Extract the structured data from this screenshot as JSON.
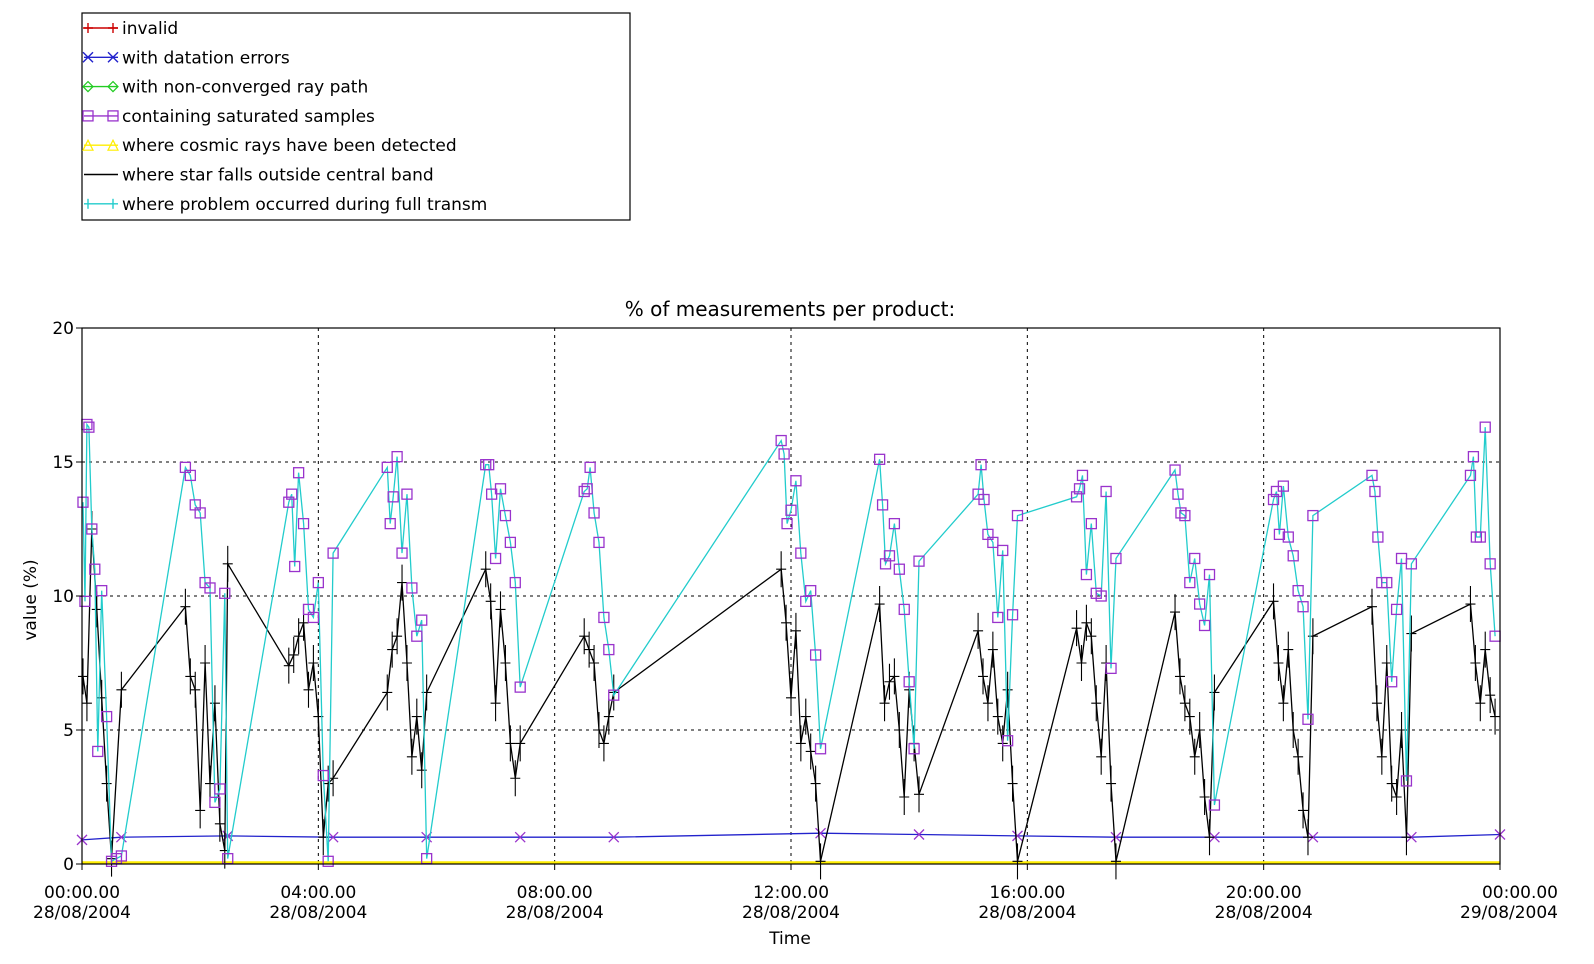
{
  "chart_data": {
    "type": "line",
    "title": "% of measurements per product:",
    "xlabel": "Time",
    "ylabel": "value (%)",
    "ylim": [
      0,
      20
    ],
    "xlim": [
      "2004-08-28 00:00",
      "2004-08-29 00:00"
    ],
    "grid": true,
    "legend_position": "top-left",
    "y_ticks": [
      "0",
      "5",
      "10",
      "15",
      "20"
    ],
    "x_ticks": [
      {
        "time": "2004-08-28 00:00",
        "label1": "00:00.00",
        "label2": "28/08/2004"
      },
      {
        "time": "2004-08-28 04:00",
        "label1": "04:00.00",
        "label2": "28/08/2004"
      },
      {
        "time": "2004-08-28 08:00",
        "label1": "08:00.00",
        "label2": "28/08/2004"
      },
      {
        "time": "2004-08-28 12:00",
        "label1": "12:00.00",
        "label2": "28/08/2004"
      },
      {
        "time": "2004-08-28 16:00",
        "label1": "16:00.00",
        "label2": "28/08/2004"
      },
      {
        "time": "2004-08-28 20:00",
        "label1": "20:00.00",
        "label2": "28/08/2004"
      },
      {
        "time": "2004-08-29 00:00",
        "label1": "00:00.00",
        "label2": "29/08/2004"
      }
    ],
    "legend": [
      {
        "name": "invalid",
        "color": "#cc0000",
        "marker": "plus"
      },
      {
        "name": "with datation errors",
        "color": "#2222cc",
        "marker": "x"
      },
      {
        "name": "with non-converged ray path",
        "color": "#22cc22",
        "marker": "diamond"
      },
      {
        "name": "containing saturated samples",
        "color": "#9933cc",
        "marker": "square"
      },
      {
        "name": "where cosmic rays have been detected",
        "color": "#ffee00",
        "marker": "triangle"
      },
      {
        "name": "where star falls outside central band",
        "color": "#000000",
        "marker": "none"
      },
      {
        "name": "where problem occurred during full transm",
        "color": "#22cccc",
        "marker": "bar"
      }
    ],
    "series": [
      {
        "name": "where problem occurred during full transm",
        "color": "#22cccc",
        "marker_color": "#9933cc",
        "x": [
          "2004-08-28 00:01",
          "2004-08-28 00:03",
          "2004-08-28 00:05",
          "2004-08-28 00:07",
          "2004-08-28 00:10",
          "2004-08-28 00:13",
          "2004-08-28 00:16",
          "2004-08-28 00:20",
          "2004-08-28 00:25",
          "2004-08-28 00:30",
          "2004-08-28 00:35",
          "2004-08-28 00:40",
          "2004-08-28 01:45",
          "2004-08-28 01:50",
          "2004-08-28 01:55",
          "2004-08-28 02:00",
          "2004-08-28 02:05",
          "2004-08-28 02:10",
          "2004-08-28 02:15",
          "2004-08-28 02:20",
          "2004-08-28 02:25",
          "2004-08-28 02:28",
          "2004-08-28 03:30",
          "2004-08-28 03:33",
          "2004-08-28 03:36",
          "2004-08-28 03:40",
          "2004-08-28 03:45",
          "2004-08-28 03:50",
          "2004-08-28 03:55",
          "2004-08-28 04:00",
          "2004-08-28 04:05",
          "2004-08-28 04:10",
          "2004-08-28 04:15",
          "2004-08-28 05:10",
          "2004-08-28 05:13",
          "2004-08-28 05:16",
          "2004-08-28 05:20",
          "2004-08-28 05:25",
          "2004-08-28 05:30",
          "2004-08-28 05:35",
          "2004-08-28 05:40",
          "2004-08-28 05:45",
          "2004-08-28 05:50",
          "2004-08-28 06:50",
          "2004-08-28 06:53",
          "2004-08-28 06:56",
          "2004-08-28 07:00",
          "2004-08-28 07:05",
          "2004-08-28 07:10",
          "2004-08-28 07:15",
          "2004-08-28 07:20",
          "2004-08-28 07:25",
          "2004-08-28 08:30",
          "2004-08-28 08:33",
          "2004-08-28 08:36",
          "2004-08-28 08:40",
          "2004-08-28 08:45",
          "2004-08-28 08:50",
          "2004-08-28 08:55",
          "2004-08-28 09:00",
          "2004-08-28 11:50",
          "2004-08-28 11:53",
          "2004-08-28 11:56",
          "2004-08-28 12:00",
          "2004-08-28 12:05",
          "2004-08-28 12:10",
          "2004-08-28 12:15",
          "2004-08-28 12:20",
          "2004-08-28 12:25",
          "2004-08-28 12:30",
          "2004-08-28 13:30",
          "2004-08-28 13:33",
          "2004-08-28 13:36",
          "2004-08-28 13:40",
          "2004-08-28 13:45",
          "2004-08-28 13:50",
          "2004-08-28 13:55",
          "2004-08-28 14:00",
          "2004-08-28 14:05",
          "2004-08-28 14:10",
          "2004-08-28 15:10",
          "2004-08-28 15:13",
          "2004-08-28 15:16",
          "2004-08-28 15:20",
          "2004-08-28 15:25",
          "2004-08-28 15:30",
          "2004-08-28 15:35",
          "2004-08-28 15:40",
          "2004-08-28 15:45",
          "2004-08-28 15:50",
          "2004-08-28 16:50",
          "2004-08-28 16:53",
          "2004-08-28 16:56",
          "2004-08-28 17:00",
          "2004-08-28 17:05",
          "2004-08-28 17:10",
          "2004-08-28 17:15",
          "2004-08-28 17:20",
          "2004-08-28 17:25",
          "2004-08-28 17:30",
          "2004-08-28 18:30",
          "2004-08-28 18:33",
          "2004-08-28 18:36",
          "2004-08-28 18:40",
          "2004-08-28 18:45",
          "2004-08-28 18:50",
          "2004-08-28 18:55",
          "2004-08-28 19:00",
          "2004-08-28 19:05",
          "2004-08-28 19:10",
          "2004-08-28 20:10",
          "2004-08-28 20:13",
          "2004-08-28 20:16",
          "2004-08-28 20:20",
          "2004-08-28 20:25",
          "2004-08-28 20:30",
          "2004-08-28 20:35",
          "2004-08-28 20:40",
          "2004-08-28 20:45",
          "2004-08-28 20:50",
          "2004-08-28 21:50",
          "2004-08-28 21:53",
          "2004-08-28 21:56",
          "2004-08-28 22:00",
          "2004-08-28 22:05",
          "2004-08-28 22:10",
          "2004-08-28 22:15",
          "2004-08-28 22:20",
          "2004-08-28 22:25",
          "2004-08-28 22:30",
          "2004-08-28 23:30",
          "2004-08-28 23:33",
          "2004-08-28 23:36",
          "2004-08-28 23:40",
          "2004-08-28 23:45",
          "2004-08-28 23:50",
          "2004-08-28 23:55"
        ],
        "values": [
          13.5,
          9.8,
          16.4,
          16.3,
          12.5,
          11.0,
          4.2,
          10.2,
          5.5,
          0.1,
          0.2,
          0.3,
          14.8,
          14.5,
          13.4,
          13.1,
          10.5,
          10.3,
          2.3,
          2.8,
          10.1,
          0.2,
          13.5,
          13.8,
          11.1,
          14.6,
          12.7,
          9.5,
          9.2,
          10.5,
          3.3,
          0.1,
          11.6,
          14.8,
          12.7,
          13.7,
          15.2,
          11.6,
          13.8,
          10.3,
          8.5,
          9.1,
          0.2,
          14.9,
          14.9,
          13.8,
          11.4,
          14.0,
          13.0,
          12.0,
          10.5,
          6.6,
          13.9,
          14.0,
          14.8,
          13.1,
          12.0,
          9.2,
          8.0,
          6.3,
          15.8,
          15.3,
          12.7,
          13.2,
          14.3,
          11.6,
          9.8,
          10.2,
          7.8,
          4.3,
          15.1,
          13.4,
          11.2,
          11.5,
          12.7,
          11.0,
          9.5,
          6.8,
          4.3,
          11.3,
          13.8,
          14.9,
          13.6,
          12.3,
          12.0,
          9.2,
          11.7,
          4.6,
          9.3,
          13.0,
          13.7,
          14.0,
          14.5,
          10.8,
          12.7,
          10.1,
          10.0,
          13.9,
          7.3,
          11.4,
          14.7,
          13.8,
          13.1,
          13.0,
          10.5,
          11.4,
          9.7,
          8.9,
          10.8,
          2.2,
          13.6,
          13.9,
          12.3,
          14.1,
          12.2,
          11.5,
          10.2,
          9.6,
          5.4,
          13.0,
          14.5,
          13.9,
          12.2,
          10.5,
          10.5,
          6.8,
          9.5,
          11.4,
          3.1,
          11.2,
          14.5,
          15.2,
          12.2,
          12.2,
          16.3,
          11.2,
          8.5
        ]
      },
      {
        "name": "where star falls outside central band",
        "color": "#000000",
        "x": [
          "2004-08-28 00:01",
          "2004-08-28 00:05",
          "2004-08-28 00:10",
          "2004-08-28 00:15",
          "2004-08-28 00:20",
          "2004-08-28 00:25",
          "2004-08-28 00:30",
          "2004-08-28 00:40",
          "2004-08-28 01:45",
          "2004-08-28 01:50",
          "2004-08-28 01:55",
          "2004-08-28 02:00",
          "2004-08-28 02:05",
          "2004-08-28 02:10",
          "2004-08-28 02:15",
          "2004-08-28 02:20",
          "2004-08-28 02:25",
          "2004-08-28 02:28",
          "2004-08-28 03:30",
          "2004-08-28 03:35",
          "2004-08-28 03:40",
          "2004-08-28 03:45",
          "2004-08-28 03:50",
          "2004-08-28 03:55",
          "2004-08-28 04:00",
          "2004-08-28 04:05",
          "2004-08-28 04:10",
          "2004-08-28 04:15",
          "2004-08-28 05:10",
          "2004-08-28 05:15",
          "2004-08-28 05:20",
          "2004-08-28 05:25",
          "2004-08-28 05:30",
          "2004-08-28 05:35",
          "2004-08-28 05:40",
          "2004-08-28 05:45",
          "2004-08-28 05:50",
          "2004-08-28 06:50",
          "2004-08-28 06:55",
          "2004-08-28 07:00",
          "2004-08-28 07:05",
          "2004-08-28 07:10",
          "2004-08-28 07:15",
          "2004-08-28 07:20",
          "2004-08-28 07:25",
          "2004-08-28 08:30",
          "2004-08-28 08:35",
          "2004-08-28 08:40",
          "2004-08-28 08:45",
          "2004-08-28 08:50",
          "2004-08-28 08:55",
          "2004-08-28 09:00",
          "2004-08-28 11:50",
          "2004-08-28 11:55",
          "2004-08-28 12:00",
          "2004-08-28 12:05",
          "2004-08-28 12:10",
          "2004-08-28 12:15",
          "2004-08-28 12:20",
          "2004-08-28 12:25",
          "2004-08-28 12:30",
          "2004-08-28 13:30",
          "2004-08-28 13:35",
          "2004-08-28 13:40",
          "2004-08-28 13:45",
          "2004-08-28 13:50",
          "2004-08-28 13:55",
          "2004-08-28 14:00",
          "2004-08-28 14:05",
          "2004-08-28 14:10",
          "2004-08-28 15:10",
          "2004-08-28 15:15",
          "2004-08-28 15:20",
          "2004-08-28 15:25",
          "2004-08-28 15:30",
          "2004-08-28 15:35",
          "2004-08-28 15:40",
          "2004-08-28 15:45",
          "2004-08-28 15:50",
          "2004-08-28 16:50",
          "2004-08-28 16:55",
          "2004-08-28 17:00",
          "2004-08-28 17:05",
          "2004-08-28 17:10",
          "2004-08-28 17:15",
          "2004-08-28 17:20",
          "2004-08-28 17:25",
          "2004-08-28 17:30",
          "2004-08-28 18:30",
          "2004-08-28 18:35",
          "2004-08-28 18:40",
          "2004-08-28 18:45",
          "2004-08-28 18:50",
          "2004-08-28 18:55",
          "2004-08-28 19:00",
          "2004-08-28 19:05",
          "2004-08-28 19:10",
          "2004-08-28 20:10",
          "2004-08-28 20:15",
          "2004-08-28 20:20",
          "2004-08-28 20:25",
          "2004-08-28 20:30",
          "2004-08-28 20:35",
          "2004-08-28 20:40",
          "2004-08-28 20:45",
          "2004-08-28 20:50",
          "2004-08-28 21:50",
          "2004-08-28 21:55",
          "2004-08-28 22:00",
          "2004-08-28 22:05",
          "2004-08-28 22:10",
          "2004-08-28 22:15",
          "2004-08-28 22:20",
          "2004-08-28 22:25",
          "2004-08-28 22:30",
          "2004-08-28 23:30",
          "2004-08-28 23:35",
          "2004-08-28 23:40",
          "2004-08-28 23:45",
          "2004-08-28 23:50",
          "2004-08-28 23:55"
        ],
        "values": [
          7.0,
          6.0,
          12.5,
          9.5,
          6.2,
          3.0,
          0.2,
          6.5,
          9.6,
          7.0,
          6.5,
          2.0,
          7.5,
          3.0,
          6.0,
          1.5,
          0.5,
          11.2,
          7.4,
          7.8,
          8.5,
          9.0,
          6.5,
          7.5,
          5.5,
          1.0,
          3.0,
          3.2,
          6.4,
          8.0,
          8.5,
          10.5,
          7.5,
          4.0,
          5.5,
          3.5,
          6.4,
          11.0,
          9.8,
          6.0,
          9.5,
          7.5,
          4.5,
          3.2,
          4.5,
          8.5,
          8.0,
          7.5,
          5.0,
          4.5,
          5.5,
          6.4,
          11.0,
          9.0,
          6.2,
          8.7,
          4.5,
          5.5,
          4.2,
          3.0,
          0.1,
          9.7,
          6.0,
          6.8,
          7.0,
          5.0,
          2.5,
          6.5,
          4.5,
          2.6,
          8.7,
          7.0,
          6.0,
          8.0,
          5.5,
          4.5,
          6.5,
          3.0,
          0.1,
          8.8,
          7.5,
          9.0,
          8.5,
          6.0,
          4.0,
          7.5,
          3.0,
          0.1,
          9.4,
          7.0,
          6.0,
          5.5,
          4.0,
          5.0,
          2.5,
          1.0,
          6.4,
          9.8,
          7.5,
          6.0,
          8.0,
          5.0,
          4.0,
          2.0,
          1.0,
          8.5,
          9.6,
          6.0,
          4.0,
          7.5,
          3.0,
          2.5,
          5.0,
          1.0,
          8.6,
          9.7,
          7.5,
          6.0,
          8.0,
          6.3,
          5.5
        ]
      },
      {
        "name": "with datation errors",
        "color": "#2222cc",
        "x": [
          "2004-08-28 00:00",
          "2004-08-28 00:40",
          "2004-08-28 02:28",
          "2004-08-28 04:15",
          "2004-08-28 05:50",
          "2004-08-28 07:25",
          "2004-08-28 09:00",
          "2004-08-28 12:30",
          "2004-08-28 14:10",
          "2004-08-28 15:50",
          "2004-08-28 17:30",
          "2004-08-28 19:10",
          "2004-08-28 20:50",
          "2004-08-28 22:30",
          "2004-08-29 00:00"
        ],
        "values": [
          0.9,
          1.0,
          1.05,
          1.0,
          1.0,
          1.0,
          1.0,
          1.15,
          1.1,
          1.05,
          1.0,
          1.0,
          1.0,
          1.0,
          1.1
        ]
      },
      {
        "name": "where cosmic rays have been detected",
        "color": "#ffee00",
        "x": [
          "2004-08-28 00:00",
          "2004-08-29 00:00"
        ],
        "values": [
          0.05,
          0.05
        ]
      }
    ]
  }
}
